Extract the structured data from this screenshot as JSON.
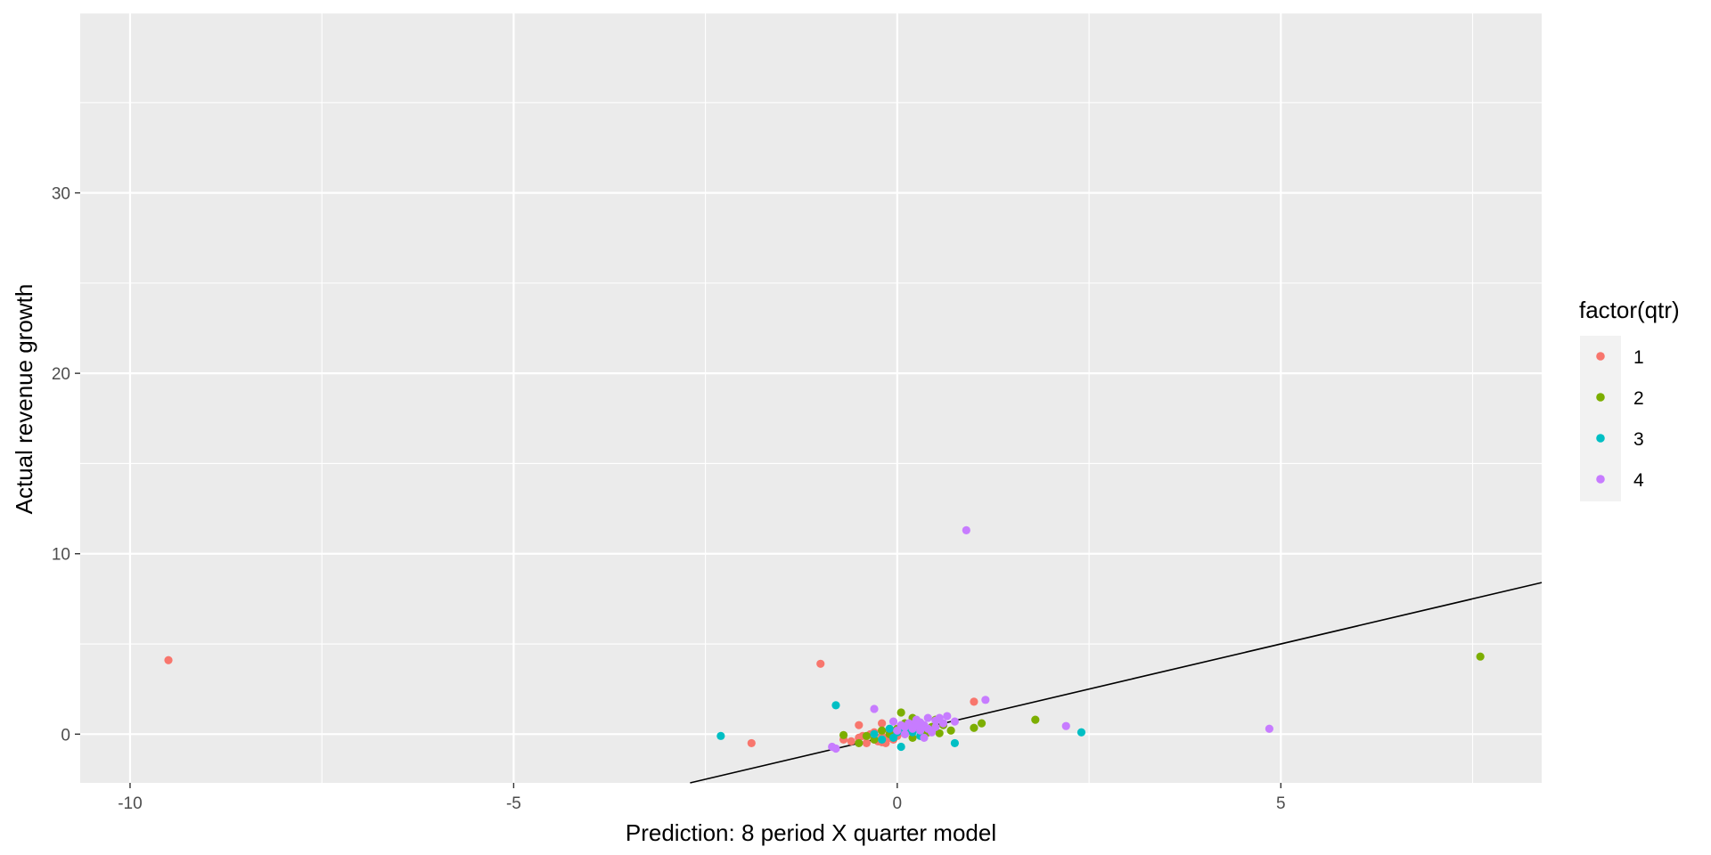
{
  "chart_data": {
    "type": "scatter",
    "xlabel": "Prediction: 8 period X quarter model",
    "ylabel": "Actual revenue growth",
    "xlim": [
      -10.65,
      8.4
    ],
    "ylim": [
      -2.7,
      40
    ],
    "x_ticks": [
      -10,
      -5,
      0,
      5
    ],
    "x_tick_labels": [
      "-10",
      "-5",
      "0",
      "5"
    ],
    "y_ticks": [
      0,
      10,
      20,
      30
    ],
    "y_tick_labels": [
      "0",
      "10",
      "20",
      "30"
    ],
    "grid": true,
    "panel_background": "#ebebeb",
    "grid_color": "#ffffff",
    "reference_line": {
      "type": "abline",
      "intercept": 0,
      "slope": 1,
      "color": "#000000"
    },
    "legend": {
      "title": "factor(qtr)",
      "position": "right"
    },
    "series": [
      {
        "name": "1",
        "color": "#F8766D",
        "points": [
          [
            -9.5,
            4.1
          ],
          [
            -1.0,
            3.9
          ],
          [
            -1.9,
            -0.5
          ],
          [
            1.0,
            1.8
          ],
          [
            -0.5,
            0.5
          ],
          [
            -0.2,
            0.6
          ],
          [
            -0.6,
            -0.4
          ],
          [
            -0.5,
            -0.2
          ],
          [
            -0.4,
            -0.5
          ],
          [
            -0.3,
            -0.3
          ],
          [
            -0.35,
            0.0
          ],
          [
            -0.25,
            -0.4
          ],
          [
            -0.2,
            -0.1
          ],
          [
            -0.15,
            -0.5
          ],
          [
            -0.1,
            -0.2
          ],
          [
            -0.1,
            0.2
          ],
          [
            0.0,
            -0.1
          ],
          [
            0.05,
            0.3
          ],
          [
            -0.05,
            -0.3
          ],
          [
            0.1,
            0.0
          ],
          [
            0.15,
            0.2
          ],
          [
            -0.45,
            -0.1
          ],
          [
            -0.3,
            0.1
          ],
          [
            -0.2,
            -0.45
          ],
          [
            -0.7,
            -0.3
          ]
        ]
      },
      {
        "name": "2",
        "color": "#7CAE00",
        "points": [
          [
            7.6,
            4.3
          ],
          [
            1.8,
            0.8
          ],
          [
            1.1,
            0.6
          ],
          [
            1.0,
            0.35
          ],
          [
            0.7,
            0.2
          ],
          [
            0.5,
            0.8
          ],
          [
            0.3,
            0.5
          ],
          [
            0.2,
            0.9
          ],
          [
            0.1,
            0.6
          ],
          [
            0.05,
            1.2
          ],
          [
            0.0,
            0.3
          ],
          [
            -0.1,
            0.0
          ],
          [
            -0.3,
            -0.3
          ],
          [
            -0.4,
            -0.1
          ],
          [
            -0.5,
            -0.5
          ],
          [
            -0.7,
            -0.05
          ],
          [
            0.2,
            -0.2
          ],
          [
            0.4,
            0.1
          ],
          [
            0.6,
            0.5
          ],
          [
            0.15,
            0.3
          ],
          [
            0.35,
            -0.1
          ],
          [
            0.25,
            0.7
          ],
          [
            -0.2,
            0.2
          ],
          [
            0.45,
            0.4
          ],
          [
            0.55,
            0.05
          ]
        ]
      },
      {
        "name": "3",
        "color": "#00BFC4",
        "points": [
          [
            -2.3,
            -0.1
          ],
          [
            -0.8,
            1.6
          ],
          [
            2.4,
            0.1
          ],
          [
            0.75,
            -0.5
          ],
          [
            0.05,
            -0.7
          ],
          [
            -0.1,
            0.3
          ],
          [
            -0.3,
            0.0
          ],
          [
            0.2,
            0.1
          ],
          [
            0.35,
            0.4
          ],
          [
            -0.05,
            -0.2
          ],
          [
            0.1,
            0.25
          ],
          [
            0.3,
            -0.1
          ],
          [
            -0.2,
            -0.3
          ],
          [
            0.15,
            0.45
          ],
          [
            0.0,
            0.1
          ]
        ]
      },
      {
        "name": "4",
        "color": "#C77CFF",
        "points": [
          [
            0.9,
            11.3
          ],
          [
            4.85,
            0.3
          ],
          [
            2.2,
            0.45
          ],
          [
            1.15,
            1.9
          ],
          [
            -0.3,
            1.4
          ],
          [
            -0.85,
            -0.7
          ],
          [
            -0.8,
            -0.8
          ],
          [
            0.65,
            1.0
          ],
          [
            0.75,
            0.7
          ],
          [
            0.6,
            0.6
          ],
          [
            0.5,
            0.4
          ],
          [
            0.4,
            0.9
          ],
          [
            0.35,
            0.5
          ],
          [
            0.3,
            0.2
          ],
          [
            0.25,
            0.8
          ],
          [
            0.2,
            0.3
          ],
          [
            0.15,
            0.6
          ],
          [
            0.1,
            0.0
          ],
          [
            0.05,
            0.5
          ],
          [
            0.0,
            0.2
          ],
          [
            -0.05,
            0.7
          ],
          [
            0.45,
            0.1
          ],
          [
            0.35,
            -0.2
          ],
          [
            0.55,
            0.9
          ],
          [
            0.5,
            0.75
          ],
          [
            0.3,
            0.65
          ],
          [
            0.1,
            0.4
          ],
          [
            0.2,
            0.55
          ],
          [
            0.4,
            0.3
          ],
          [
            0.25,
            0.45
          ]
        ]
      }
    ]
  }
}
